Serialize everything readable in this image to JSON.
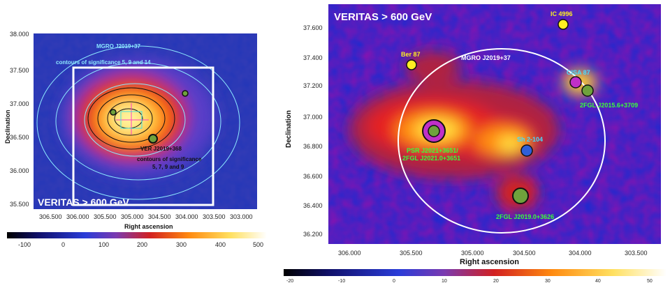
{
  "left_panel": {
    "corner_label": "VERITAS > 600 GeV",
    "mgro_label": "MGRO J2019+37",
    "mgro_contours": "contours of significance 5, 9 and 14",
    "ver_label": "VER J2019+368",
    "ver_contours_1": "contours of significance",
    "ver_contours_2": "5, 7, 9 and 9",
    "xlabel": "Right ascension",
    "ylabel": "Declination",
    "xticks": [
      "306.500",
      "306.000",
      "305.500",
      "305.000",
      "304.500",
      "304.000",
      "303.500",
      "303.000"
    ],
    "yticks": [
      "38.000",
      "37.500",
      "37.000",
      "36.500",
      "36.000",
      "35.500"
    ],
    "colorbar_ticks": [
      "-100",
      "0",
      "100",
      "200",
      "300",
      "400",
      "500"
    ]
  },
  "right_panel": {
    "corner_label": "VERITAS > 600 GeV",
    "mgro_label": "MGRO J2019+37",
    "ic4996": "IC 4996",
    "ber87": "Ber 87",
    "cisa": "CISA 87",
    "fgl2015": "2FGL J2015.6+3709",
    "psr_1": "PSR J2021+3651/",
    "psr_2": "2FGL J2021.0+3651",
    "sh2": "Sh 2-104",
    "fgl2019": "2FGL J2019.0+3626",
    "xlabel": "Right ascension",
    "ylabel": "Declination",
    "xticks": [
      "306.000",
      "305.500",
      "305.000",
      "304.500",
      "304.000",
      "303.500"
    ],
    "yticks": [
      "37.600",
      "37.400",
      "37.200",
      "37.000",
      "36.800",
      "36.600",
      "36.400",
      "36.200"
    ],
    "colorbar_ticks": [
      "-20",
      "-10",
      "0",
      "10",
      "20",
      "30",
      "40",
      "50"
    ]
  },
  "colors": {
    "source_green": "#6fa23c",
    "pulsar_magenta": "#c030c8",
    "star_yellow": "#ffee22",
    "sh2_blue": "#2f5fd8",
    "label_green": "#3aff3a",
    "label_cyan": "#44ddff"
  }
}
